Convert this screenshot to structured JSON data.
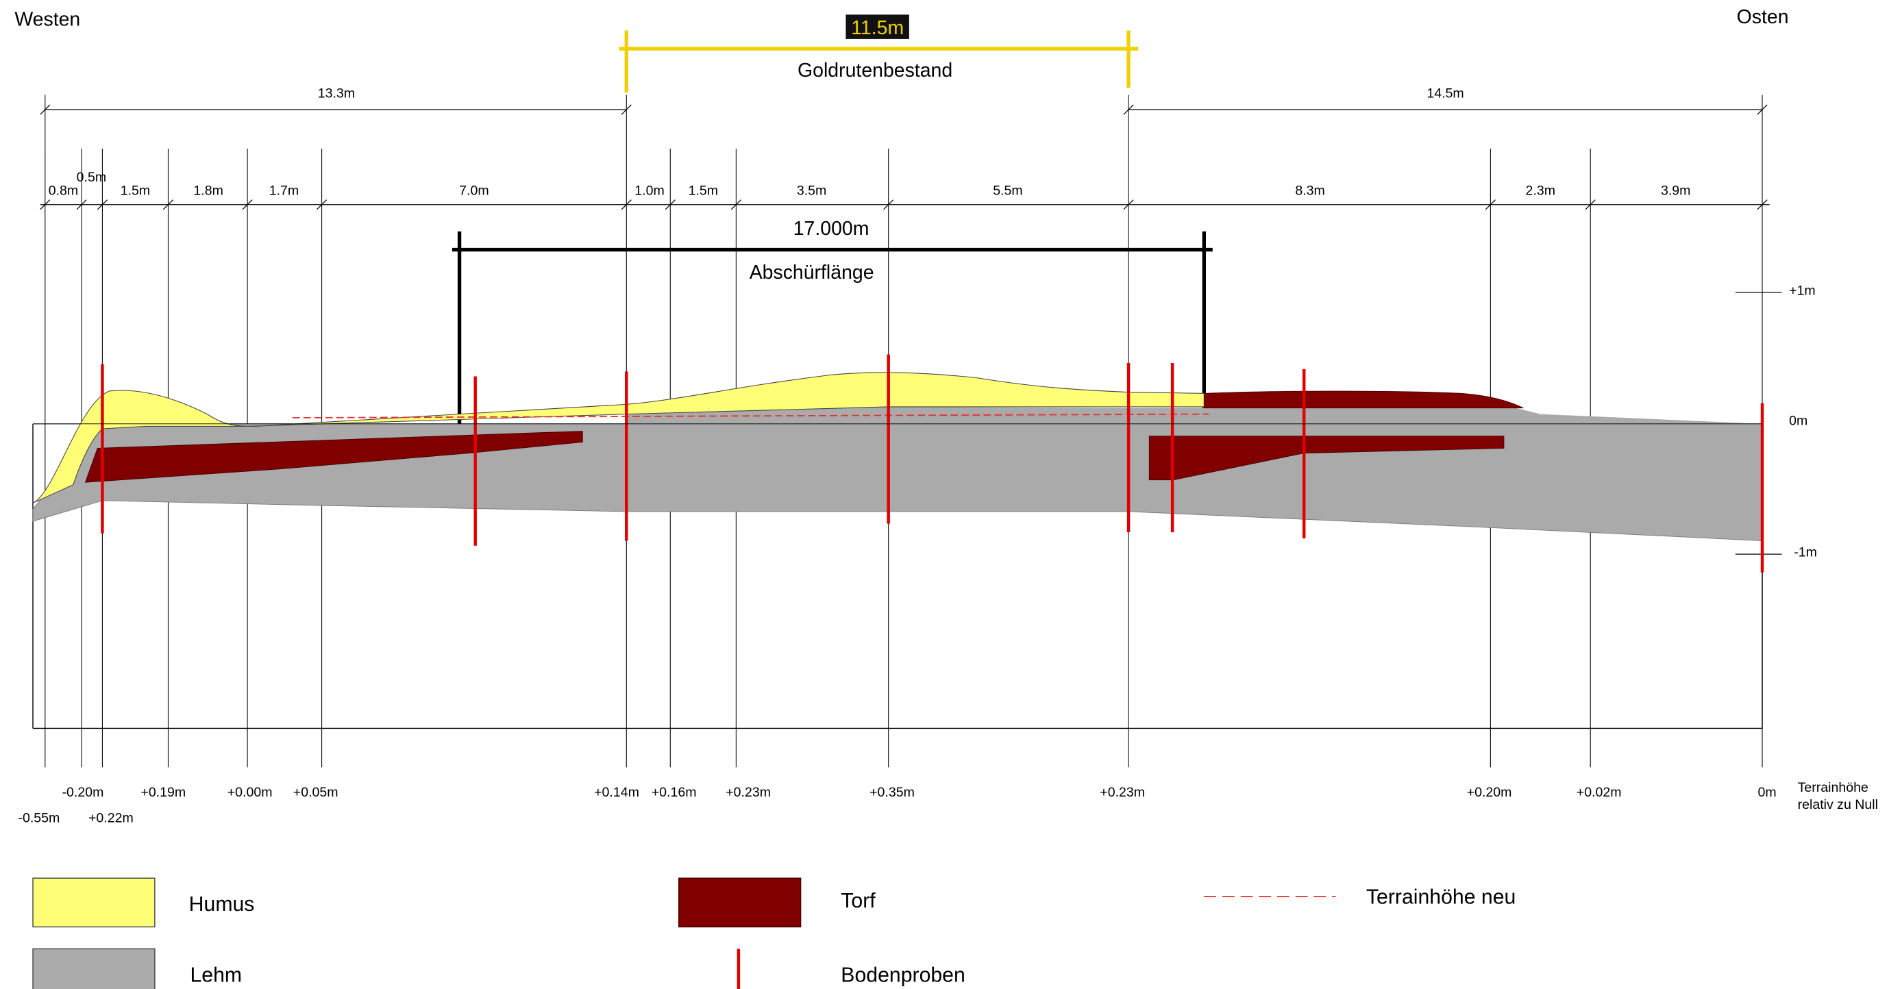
{
  "directions": {
    "west": "Westen",
    "east": "Osten"
  },
  "goldruten": {
    "length": "11.5m",
    "label": "Goldrutenbestand"
  },
  "abschuerf": {
    "length": "17.000m",
    "label": "Abschürflänge"
  },
  "overall_spans": [
    "13.3m",
    "14.5m"
  ],
  "segment_spans": [
    "0.8m",
    "0.5m",
    "1.5m",
    "1.8m",
    "1.7m",
    "7.0m",
    "1.0m",
    "1.5m",
    "3.5m",
    "5.5m",
    "8.3m",
    "2.3m",
    "3.9m"
  ],
  "elevation_scale": [
    "+1m",
    "0m",
    "-1m"
  ],
  "terrain_heights": [
    "-0.55m",
    "-0.20m",
    "+0.22m",
    "+0.19m",
    "+0.00m",
    "+0.05m",
    "+0.14m",
    "+0.16m",
    "+0.23m",
    "+0.35m",
    "+0.23m",
    "+0.20m",
    "+0.02m",
    "0m"
  ],
  "terrain_caption": {
    "line1": "Terrainhöhe",
    "line2": "relativ zu Null"
  },
  "legend": {
    "humus": "Humus",
    "lehm": "Lehm",
    "torf": "Torf",
    "bodenproben": "Bodenproben",
    "terrain_neu": "Terrainhöhe neu"
  },
  "colors": {
    "humus": "#ffff77",
    "lehm": "#aaaaaa",
    "torf": "#800000",
    "bodenproben": "#e00000",
    "terrain_neu": "#e03030",
    "goldruten_bar": "#f0d000",
    "goldruten_label_bg": "#111111",
    "goldruten_label_fg": "#f0d000"
  }
}
